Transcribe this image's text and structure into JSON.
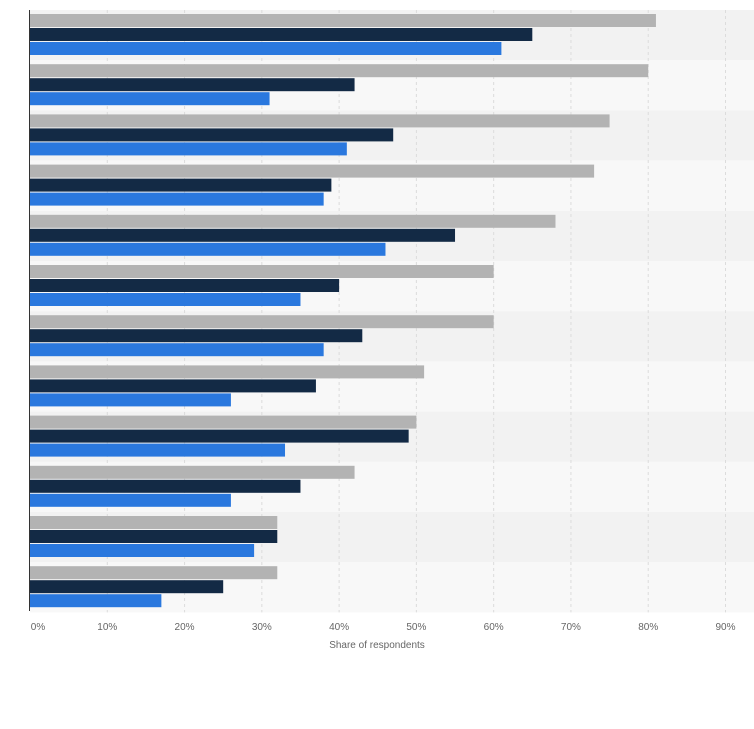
{
  "chart_data": {
    "type": "bar",
    "orientation": "horizontal",
    "categories": [
      "",
      "",
      "",
      "",
      "",
      "",
      "",
      "",
      "",
      "",
      "",
      ""
    ],
    "series": [
      {
        "color": "#b3b3b3",
        "values": [
          81,
          80,
          75,
          73,
          68,
          60,
          60,
          51,
          50,
          42,
          32,
          32
        ]
      },
      {
        "color": "#132a45",
        "values": [
          65,
          42,
          47,
          39,
          55,
          40,
          43,
          37,
          49,
          35,
          32,
          25
        ]
      },
      {
        "color": "#2a78de",
        "values": [
          61,
          31,
          41,
          38,
          46,
          35,
          38,
          26,
          33,
          26,
          29,
          17
        ]
      }
    ],
    "xlabel": "Share of respondents",
    "xlim": [
      0,
      90
    ],
    "x_ticks": [
      "0%",
      "10%",
      "20%",
      "30%",
      "40%",
      "50%",
      "60%",
      "70%",
      "80%",
      "90%"
    ],
    "grid": true,
    "legend": "none"
  }
}
